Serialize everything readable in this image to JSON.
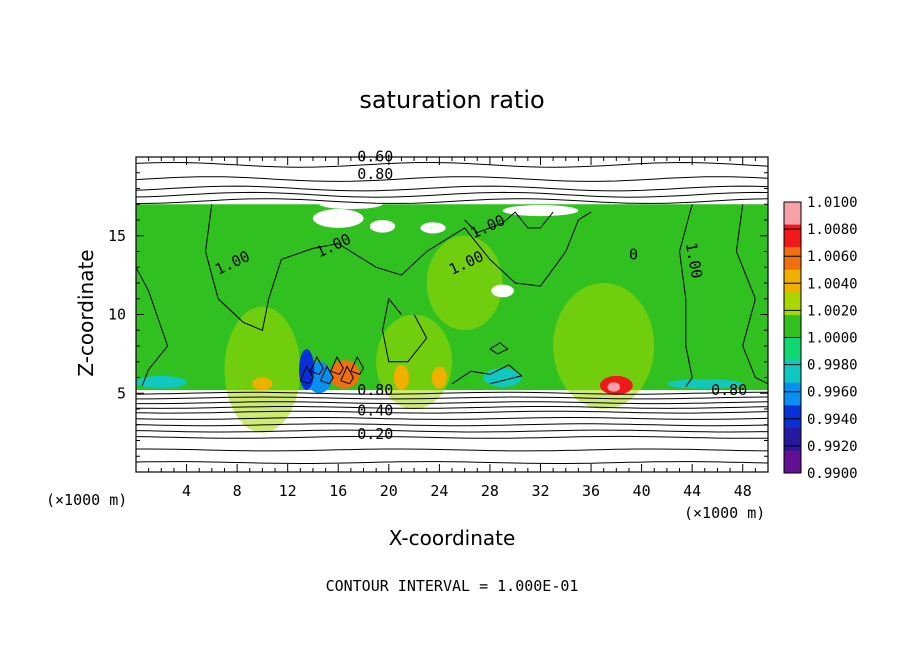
{
  "chart_data": {
    "type": "heatmap",
    "title": "saturation ratio",
    "xlabel": "X-coordinate",
    "ylabel": "Z-coordinate",
    "x_unit": "(×1000 m)",
    "xlim": [
      0,
      50
    ],
    "ylim": [
      0,
      20
    ],
    "x_ticks": [
      4,
      8,
      12,
      16,
      20,
      24,
      28,
      32,
      36,
      40,
      44,
      48
    ],
    "y_ticks": [
      5,
      10,
      15
    ],
    "colorbar": {
      "levels": [
        "1.0100",
        "1.0080",
        "1.0060",
        "1.0040",
        "1.0020",
        "1.0000",
        "0.9980",
        "0.9960",
        "0.9940",
        "0.9920",
        "0.9900"
      ],
      "colors": [
        "#f7a0a8",
        "#f01818",
        "#f07010",
        "#f0b000",
        "#a8d800",
        "#30c020",
        "#10d870",
        "#10c8c0",
        "#0890f0",
        "#0830d8",
        "#2818a0",
        "#601090"
      ]
    },
    "cloud_layer_z": [
      5.2,
      17.0
    ],
    "contour_labels": [
      "0.60",
      "0.80",
      "1.00",
      "1.00",
      "1.00",
      "1.00",
      "1.00",
      "0",
      "0.80",
      "0.80",
      "0.40",
      "0.20"
    ],
    "contour_interval_text": "CONTOUR INTERVAL = 1.000E-01",
    "background_colors": {
      "saturated": "#30c020",
      "subsaturated": "#ffffff"
    }
  }
}
